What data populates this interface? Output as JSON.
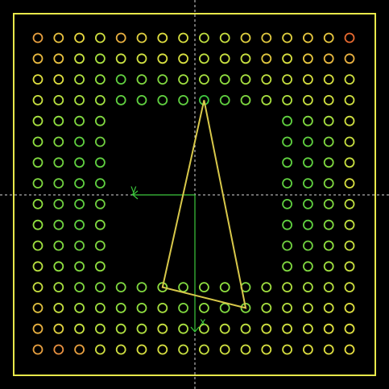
{
  "package_view": {
    "colors": {
      "background": "#000000",
      "outline": "#e8e84a",
      "crosshair": "#d8d8d8",
      "axis": "#3cc83c",
      "selection_path": "#d8c84a"
    },
    "axis_labels": {
      "x": "x",
      "y": "y"
    },
    "grid": {
      "rows": 16,
      "cols": 16,
      "void_rows": [
        4,
        11
      ],
      "void_cols": [
        4,
        11
      ]
    },
    "ball_colors": [
      [
        "#e8a040",
        "#e8c040",
        "#e8d840",
        "#d0e040",
        "#e8b040",
        "#e0d040",
        "#e0e040",
        "#d8e040",
        "#c0e040",
        "#c8e040",
        "#e0d040",
        "#e0c840",
        "#e0d040",
        "#e8c840",
        "#e8c840",
        "#e86a30"
      ],
      [
        "#e8b840",
        "#e8c040",
        "#c8e040",
        "#a8e040",
        "#c8e040",
        "#d0e040",
        "#d8e040",
        "#d8e040",
        "#c0e040",
        "#c8e040",
        "#c8e040",
        "#e0c840",
        "#d8e040",
        "#e8c840",
        "#e8b840",
        "#e8b040"
      ],
      [
        "#e0e040",
        "#e0e040",
        "#b0e040",
        "#90e040",
        "#60d040",
        "#80d840",
        "#80d840",
        "#a0e040",
        "#a8e040",
        "#90e040",
        "#a8e040",
        "#c0e040",
        "#c8e040",
        "#d8e040",
        "#d8e040",
        "#d0e040"
      ],
      [
        "#c8e040",
        "#b8e040",
        "#a8e040",
        "#a0e040",
        "#60d040",
        "#60d040",
        "#60d040",
        "#60d040",
        "#40c840",
        "#60d040",
        "#80d840",
        "#a8e040",
        "#b0e040",
        "#c8e040",
        "#d0e040",
        "#d0e040"
      ],
      [
        "#a8e040",
        "#90e040",
        "#80d840",
        "#80d840",
        "",
        "",
        "",
        "",
        "",
        "",
        "",
        "",
        "#60d040",
        "#80d840",
        "#a8e040",
        "#d0e040"
      ],
      [
        "#90e040",
        "#80d840",
        "#60d040",
        "#70d040",
        "",
        "",
        "",
        "",
        "",
        "",
        "",
        "",
        "#60d040",
        "#60d040",
        "#80d840",
        "#c8e040"
      ],
      [
        "#80d840",
        "#70d040",
        "#60d040",
        "#60d040",
        "",
        "",
        "",
        "",
        "",
        "",
        "",
        "",
        "#60d040",
        "#60d040",
        "#80d840",
        "#c8e040"
      ],
      [
        "#80d840",
        "#70d040",
        "#60d040",
        "#60d040",
        "",
        "",
        "",
        "",
        "",
        "",
        "",
        "",
        "#60d040",
        "#60d040",
        "#80d840",
        "#d8e040"
      ],
      [
        "#90e040",
        "#70d040",
        "#60d040",
        "#70d040",
        "",
        "",
        "",
        "",
        "",
        "",
        "",
        "",
        "#60d040",
        "#60d040",
        "#80d840",
        "#c0e040"
      ],
      [
        "#90e040",
        "#70d040",
        "#60d040",
        "#80d840",
        "",
        "",
        "",
        "",
        "",
        "",
        "",
        "",
        "#60d040",
        "#60d040",
        "#80d840",
        "#c0e040"
      ],
      [
        "#a0e040",
        "#80d840",
        "#70d040",
        "#80d840",
        "",
        "",
        "",
        "",
        "",
        "",
        "",
        "",
        "#70d040",
        "#70d040",
        "#90e040",
        "#c8e040"
      ],
      [
        "#b8e040",
        "#90e040",
        "#80d840",
        "#90e040",
        "",
        "",
        "",
        "",
        "",
        "",
        "",
        "",
        "#80d840",
        "#80d840",
        "#a0e040",
        "#c8e040"
      ],
      [
        "#c8e040",
        "#a8e040",
        "#80d840",
        "#80d840",
        "#80d840",
        "#80d840",
        "#90e040",
        "#80d840",
        "#90e040",
        "#90e040",
        "#80d840",
        "#a0e040",
        "#b0e040",
        "#a8e040",
        "#b8e040",
        "#d0e040"
      ],
      [
        "#e0c040",
        "#c8e040",
        "#a8e040",
        "#a0e040",
        "#90e040",
        "#90e040",
        "#a8e040",
        "#80d840",
        "#90e040",
        "#80d840",
        "#80d840",
        "#a8e040",
        "#b8e040",
        "#c0e040",
        "#d0e040",
        "#e0e040"
      ],
      [
        "#e8b040",
        "#e0d040",
        "#c8e040",
        "#b8e040",
        "#b0e040",
        "#b0e040",
        "#c8e040",
        "#a8e040",
        "#b0e040",
        "#c0e040",
        "#c0e040",
        "#d0e040",
        "#d0e040",
        "#d0e040",
        "#e0e040",
        "#e0e040"
      ],
      [
        "#e8a040",
        "#e89040",
        "#e8a040",
        "#d0e040",
        "#d0e040",
        "#d8e040",
        "#d8e040",
        "#c8e040",
        "#c8e040",
        "#d0e040",
        "#d0e040",
        "#d8e040",
        "#d8e040",
        "#e0e040",
        "#e0e040",
        "#e8e040"
      ]
    ],
    "selection_balls": [
      [
        3,
        8
      ],
      [
        12,
        6
      ],
      [
        13,
        10
      ]
    ]
  }
}
